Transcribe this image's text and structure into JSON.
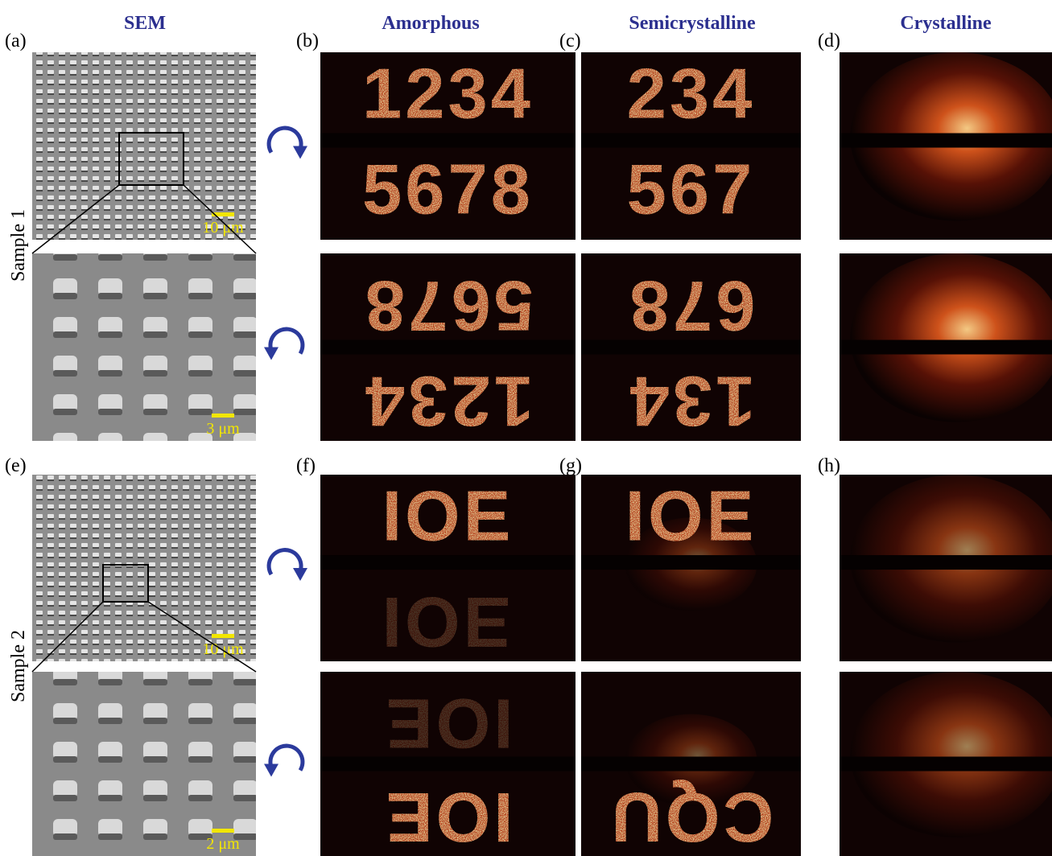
{
  "headers": [
    "SEM",
    "Amorphous",
    "Semicrystalline",
    "Crystalline"
  ],
  "panel_labels": [
    "(a)",
    "(b)",
    "(c)",
    "(d)",
    "(e)",
    "(f)",
    "(g)",
    "(h)"
  ],
  "sample_labels": [
    "Sample 1",
    "Sample 2"
  ],
  "scale_bars": [
    "10 μm",
    "3 μm",
    "10 μm",
    "2 μm"
  ],
  "amorphous": [
    {
      "upper": "1234",
      "lower": "5678"
    },
    {
      "upper": "5678",
      "lower": "1234"
    },
    {
      "upper": "IOE",
      "lower": "IOE"
    },
    {
      "upper": "IOE",
      "lower": "IOE"
    }
  ],
  "semicrystalline": [
    {
      "upper": "234",
      "lower": "567"
    },
    {
      "upper": "678",
      "lower": "134"
    },
    {
      "upper": "IOE"
    },
    {
      "lower": "CQU"
    }
  ]
}
